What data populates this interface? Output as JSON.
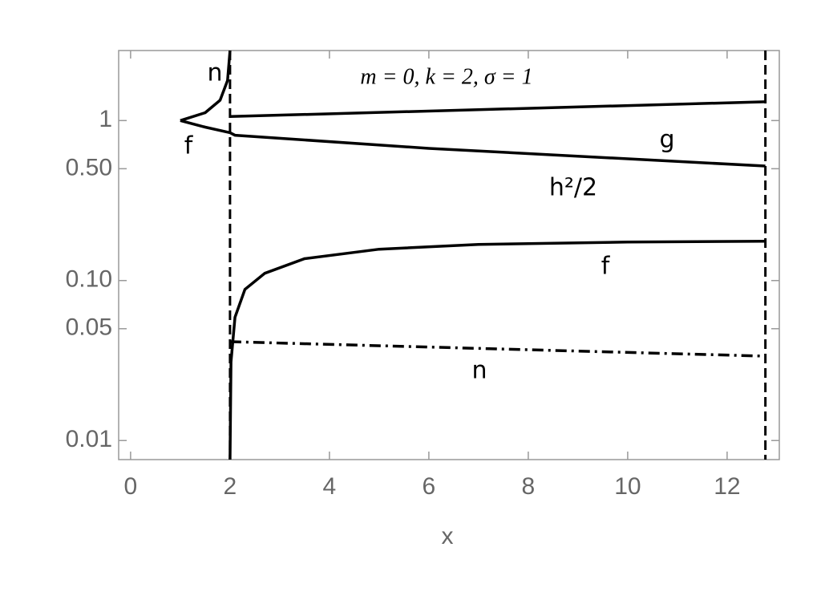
{
  "chart_data": {
    "type": "line",
    "annotation": "m = 0, k = 2, σ = 1",
    "xlabel": "x",
    "xlim": [
      -0.24,
      13.05
    ],
    "xticks": [
      0,
      2,
      4,
      6,
      8,
      10,
      12
    ],
    "ylim": [
      0.0076,
      2.74
    ],
    "log_y": true,
    "yticks": [
      0.01,
      0.05,
      {
        "value": 0.1,
        "label": "0.10"
      },
      {
        "value": 0.5,
        "label": "0.50"
      },
      1
    ],
    "vlines": [
      2,
      12.77
    ],
    "series": [
      {
        "name": "n",
        "color": "#000000",
        "style": "solid",
        "x": [
          1,
          1.5,
          1.8,
          1.95,
          2
        ],
        "values": [
          1,
          1.12,
          1.34,
          1.78,
          2.74
        ]
      },
      {
        "name": "f",
        "color": "#000000",
        "style": "solid",
        "x": [
          1,
          1.5,
          2
        ],
        "values": [
          1,
          0.91,
          0.84
        ]
      },
      {
        "name": "g",
        "color": "#000000",
        "style": "solid",
        "x": [
          2,
          12.77
        ],
        "values": [
          1.06,
          1.31
        ]
      },
      {
        "name": "h²/2",
        "color": "#000000",
        "style": "solid",
        "x": [
          2,
          2.1,
          6,
          12.77
        ],
        "values": [
          0.84,
          0.81,
          0.67,
          0.52
        ]
      },
      {
        "name": "f",
        "color": "#000000",
        "style": "solid",
        "x": [
          2,
          2.02,
          2.1,
          2.3,
          2.7,
          3.5,
          5,
          7,
          10,
          12.77
        ],
        "values": [
          0.0076,
          0.031,
          0.059,
          0.088,
          0.111,
          0.137,
          0.157,
          0.168,
          0.174,
          0.176
        ]
      },
      {
        "name": "n",
        "color": "#000000",
        "style": "dashdot",
        "x": [
          2,
          12.77
        ],
        "values": [
          0.0415,
          0.0337
        ]
      }
    ]
  }
}
